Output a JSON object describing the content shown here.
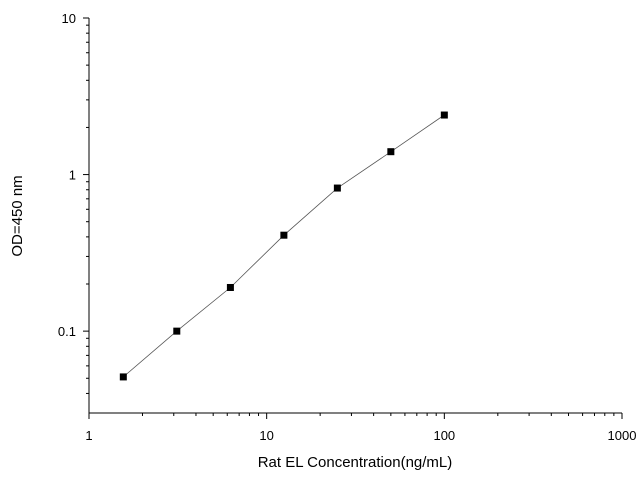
{
  "chart_data": {
    "type": "scatter",
    "title": "",
    "xlabel": "Rat EL Concentration(ng/mL)",
    "ylabel": "OD=450 nm",
    "x_scale": "log",
    "y_scale": "log",
    "xlim": [
      1,
      1000
    ],
    "ylim": [
      0.03,
      10
    ],
    "x_ticks": [
      1,
      10,
      100,
      1000
    ],
    "x_tick_labels": [
      "1",
      "10",
      "100",
      "1000"
    ],
    "y_ticks": [
      0.1,
      1,
      10
    ],
    "y_tick_labels": [
      "0.1",
      "1",
      "10"
    ],
    "grid": false,
    "legend": "none",
    "marker": "square",
    "colors": {
      "marker": "#000000",
      "line": "#555555",
      "axis": "#000000"
    },
    "series": [
      {
        "x": [
          1.56,
          3.12,
          6.25,
          12.5,
          25,
          50,
          100
        ],
        "y": [
          0.051,
          0.1,
          0.19,
          0.41,
          0.82,
          1.4,
          2.4
        ]
      }
    ]
  }
}
